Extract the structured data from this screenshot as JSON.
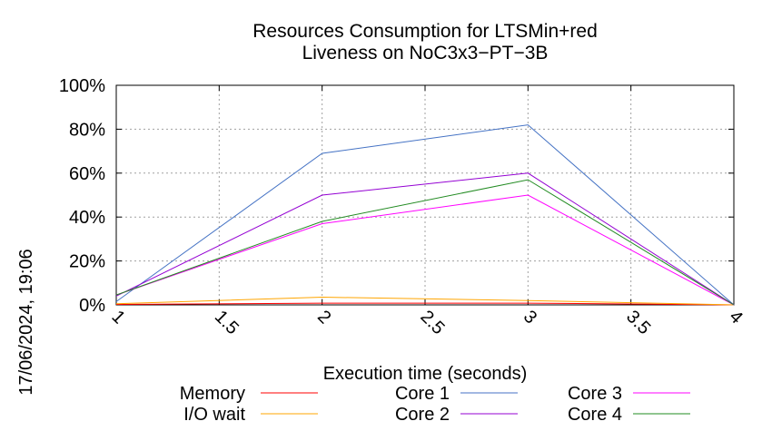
{
  "chart_data": {
    "type": "line",
    "title_lines": [
      "Resources Consumption for LTSMin+red",
      "Liveness on NoC3x3−PT−3B"
    ],
    "xlabel": "Execution time (seconds)",
    "ylabel": "",
    "side_label": "17/06/2024, 19:06",
    "xlim": [
      1,
      4
    ],
    "ylim": [
      0,
      100
    ],
    "x_ticks": [
      1,
      1.5,
      2,
      2.5,
      3,
      3.5,
      4
    ],
    "x_tick_labels": [
      "1",
      "1.5",
      "2",
      "2.5",
      "3",
      "3.5",
      "4"
    ],
    "y_ticks": [
      0,
      20,
      40,
      60,
      80,
      100
    ],
    "y_tick_labels": [
      "0%",
      "20%",
      "40%",
      "60%",
      "80%",
      "100%"
    ],
    "grid": true,
    "legend_position": "bottom",
    "x": [
      1,
      2,
      3,
      4
    ],
    "series": [
      {
        "name": "Memory",
        "color": "#ff0000",
        "values": [
          0.2,
          0.8,
          0.8,
          0
        ]
      },
      {
        "name": "I/O wait",
        "color": "#ffa500",
        "values": [
          0.5,
          3.5,
          2,
          0
        ]
      },
      {
        "name": "Core 1",
        "color": "#4472c4",
        "values": [
          1.5,
          69,
          82,
          0
        ]
      },
      {
        "name": "Core 2",
        "color": "#9400d3",
        "values": [
          4,
          50,
          60,
          0
        ]
      },
      {
        "name": "Core 3",
        "color": "#ff00ff",
        "values": [
          4.5,
          37,
          50,
          0
        ]
      },
      {
        "name": "Core 4",
        "color": "#228b22",
        "values": [
          4.5,
          38,
          57,
          0
        ]
      }
    ]
  }
}
